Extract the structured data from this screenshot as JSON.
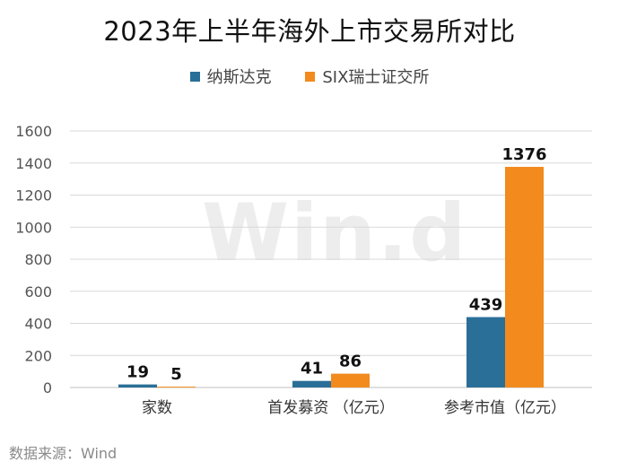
{
  "title": "2023年上半年海外上市交易所对比",
  "watermark": "Win.d",
  "source": "数据来源：Wind",
  "colors": {
    "nasdaq": "#2a6f97",
    "six": "#f28a1e"
  },
  "chart_data": {
    "type": "bar",
    "title": "2023年上半年海外上市交易所对比",
    "categories": [
      "家数",
      "首发募资 （亿元）",
      "参考市值（亿元）"
    ],
    "series": [
      {
        "name": "纳斯达克",
        "values": [
          19,
          41,
          439
        ]
      },
      {
        "name": "SIX瑞士证交所",
        "values": [
          5,
          86,
          1376
        ]
      }
    ],
    "ylim": [
      0,
      1600
    ],
    "yticks": [
      0,
      200,
      400,
      600,
      800,
      1000,
      1200,
      1400,
      1600
    ],
    "grid": true,
    "legend": "top-center"
  }
}
